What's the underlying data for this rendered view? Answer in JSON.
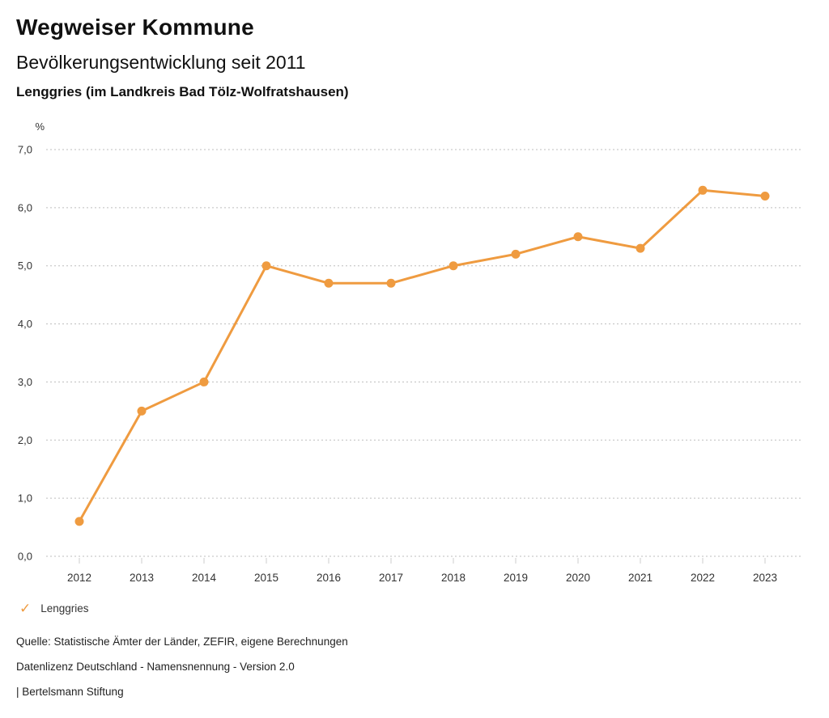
{
  "header": {
    "title": "Wegweiser Kommune",
    "subtitle": "Bevölkerungsentwicklung seit 2011",
    "region_line": "Lenggries (im Landkreis Bad Tölz-Wolfratshausen)"
  },
  "chart_data": {
    "type": "line",
    "title": "Bevölkerungsentwicklung seit 2011",
    "xlabel": "",
    "ylabel": "%",
    "unit_label": "%",
    "categories": [
      "2012",
      "2013",
      "2014",
      "2015",
      "2016",
      "2017",
      "2018",
      "2019",
      "2020",
      "2021",
      "2022",
      "2023"
    ],
    "series": [
      {
        "name": "Lenggries",
        "color": "#EF9B40",
        "values": [
          0.6,
          2.5,
          3.0,
          5.0,
          4.7,
          4.7,
          5.0,
          5.2,
          5.5,
          5.3,
          6.3,
          6.2
        ]
      }
    ],
    "ylim": [
      0,
      7
    ],
    "ytick_step": 1,
    "ytick_labels": [
      "0,0",
      "1,0",
      "2,0",
      "3,0",
      "4,0",
      "5,0",
      "6,0",
      "7,0"
    ],
    "grid": "horizontal-dotted",
    "legend_position": "bottom-left",
    "colors": {
      "series_orange": "#EF9B40",
      "gridline": "#bdbdbd",
      "tick": "#cccccc",
      "axis_text": "#333333"
    }
  },
  "legend": {
    "items": [
      {
        "label": "Lenggries",
        "color": "#EF9B40",
        "marker": "check-icon",
        "check_glyph": "✓"
      }
    ]
  },
  "footer": {
    "source": "Quelle: Statistische Ämter der Länder, ZEFIR, eigene Berechnungen",
    "license": "Datenlizenz Deutschland - Namensnennung - Version 2.0",
    "attribution": "| Bertelsmann Stiftung"
  }
}
